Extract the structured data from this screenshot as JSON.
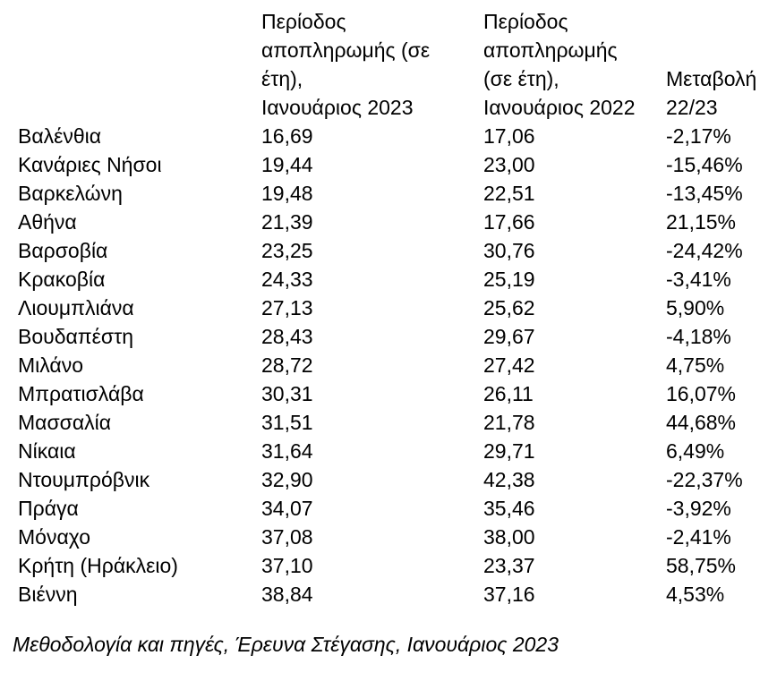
{
  "chart_data": {
    "type": "table",
    "columns": [
      "",
      "Περίοδος αποπληρωμής (σε έτη), Ιανουάριος 2023",
      "Περίοδος αποπληρωμής (σε έτη), Ιανουάριος 2022",
      "Μεταβολή 22/23"
    ],
    "rows": [
      [
        "Βαλένθια",
        "16,69",
        "17,06",
        "-2,17%"
      ],
      [
        "Κανάριες Νήσοι",
        "19,44",
        "23,00",
        "-15,46%"
      ],
      [
        "Βαρκελώνη",
        "19,48",
        "22,51",
        "-13,45%"
      ],
      [
        "Αθήνα",
        "21,39",
        "17,66",
        "21,15%"
      ],
      [
        "Βαρσοβία",
        "23,25",
        "30,76",
        "-24,42%"
      ],
      [
        "Κρακοβία",
        "24,33",
        "25,19",
        "-3,41%"
      ],
      [
        "Λιουμπλιάνα",
        "27,13",
        "25,62",
        "5,90%"
      ],
      [
        "Βουδαπέστη",
        "28,43",
        "29,67",
        "-4,18%"
      ],
      [
        "Μιλάνο",
        "28,72",
        "27,42",
        "4,75%"
      ],
      [
        "Μπρατισλάβα",
        "30,31",
        "26,11",
        "16,07%"
      ],
      [
        "Μασσαλία",
        "31,51",
        "21,78",
        "44,68%"
      ],
      [
        "Νίκαια",
        "31,64",
        "29,71",
        "6,49%"
      ],
      [
        "Ντουμπρόβνικ",
        "32,90",
        "42,38",
        "-22,37%"
      ],
      [
        "Πράγα",
        "34,07",
        "35,46",
        "-3,92%"
      ],
      [
        "Μόναχο",
        "37,08",
        "38,00",
        "-2,41%"
      ],
      [
        "Κρήτη (Ηράκλειο)",
        "37,10",
        "23,37",
        "58,75%"
      ],
      [
        "Βιέννη",
        "38,84",
        "37,16",
        "4,53%"
      ]
    ],
    "caption": "Μεθοδολογία και πηγές, Έρευνα Στέγασης, Ιανουάριος 2023",
    "title": "",
    "layout": {
      "grid": false,
      "header_alignment": "bottom",
      "value_alignment": "left",
      "text_color": "#000000",
      "background_color": "#ffffff"
    }
  },
  "header_display": {
    "col_city": "",
    "col_2023": "Περίοδος\nαποπληρωμής (σε\nέτη),\nΙανουάριος 2023",
    "col_2022": "Περίοδος\nαποπληρωμής\n(σε έτη),\nΙανουάριος 2022",
    "col_change": "Μεταβολή\n22/23"
  }
}
